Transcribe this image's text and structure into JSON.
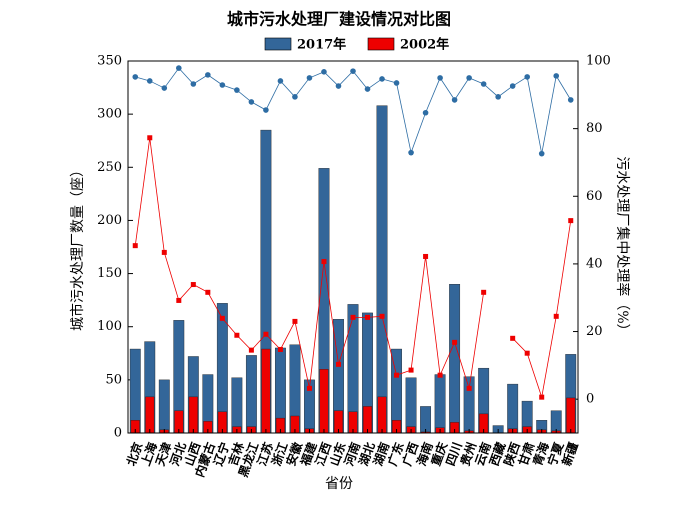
{
  "chart_data": {
    "type": "bar",
    "title": "城市污水处理厂建设情况对比图",
    "xlabel": "省份",
    "ylabel": "城市污水处理厂数量（座）",
    "y2label": "污水处理厂集中处理率（%）",
    "categories": [
      "北京",
      "上海",
      "天津",
      "河北",
      "山西",
      "内蒙古",
      "辽宁",
      "吉林",
      "黑龙江",
      "江苏",
      "浙江",
      "安徽",
      "福建",
      "江西",
      "山东",
      "河南",
      "湖北",
      "湖南",
      "广东",
      "广西",
      "海南",
      "重庆",
      "四川",
      "贵州",
      "云南",
      "西藏",
      "陕西",
      "甘肃",
      "青海",
      "宁夏",
      "新疆"
    ],
    "series": [
      {
        "name": "2017年",
        "type": "bar",
        "color": "#336699",
        "values": [
          79,
          86,
          50,
          106,
          72,
          55,
          122,
          52,
          73,
          285,
          80,
          83,
          50,
          249,
          107,
          121,
          113,
          308,
          79,
          52,
          25,
          55,
          140,
          53,
          61,
          7,
          46,
          30,
          12,
          21,
          74
        ]
      },
      {
        "name": "2002年",
        "type": "bar",
        "color": "#ee0000",
        "values": [
          12,
          34,
          3,
          21,
          34,
          11,
          20,
          6,
          6,
          79,
          14,
          16,
          4,
          60,
          21,
          20,
          25,
          34,
          12,
          6,
          1,
          5,
          10,
          2,
          18,
          0,
          4,
          6,
          3,
          2,
          33
        ]
      },
      {
        "type": "line",
        "axis": "y2",
        "color": "#2e6da4",
        "values": [
          95.3,
          94.1,
          92,
          97.9,
          93.2,
          95.9,
          92.9,
          91.4,
          87.9,
          85.5,
          94.1,
          89.4,
          95,
          96.8,
          92.6,
          97,
          91.7,
          94.7,
          93.5,
          72.9,
          84.7,
          95,
          88.5,
          95,
          93.2,
          89.4,
          92.6,
          95.3,
          72.6,
          95.6,
          88.5
        ]
      },
      {
        "type": "line",
        "axis": "y2",
        "color": "#ee0000",
        "values": [
          45.4,
          77.3,
          43.4,
          29.2,
          33.9,
          31.6,
          23.9,
          18.9,
          14.5,
          19.2,
          14.7,
          23,
          3.2,
          40.7,
          10.3,
          24.2,
          24.2,
          24.5,
          7.1,
          8.6,
          42.2,
          7.1,
          16.8,
          3.2,
          31.6,
          null,
          18,
          13.6,
          0.6,
          24.5,
          52.8
        ]
      }
    ],
    "ylim": [
      0,
      350
    ],
    "yticks": [
      0,
      50,
      100,
      150,
      200,
      250,
      300,
      350
    ],
    "y2lim": [
      -10,
      100
    ],
    "y2ticks": [
      0,
      20,
      40,
      60,
      80,
      100
    ],
    "legend": "top"
  }
}
